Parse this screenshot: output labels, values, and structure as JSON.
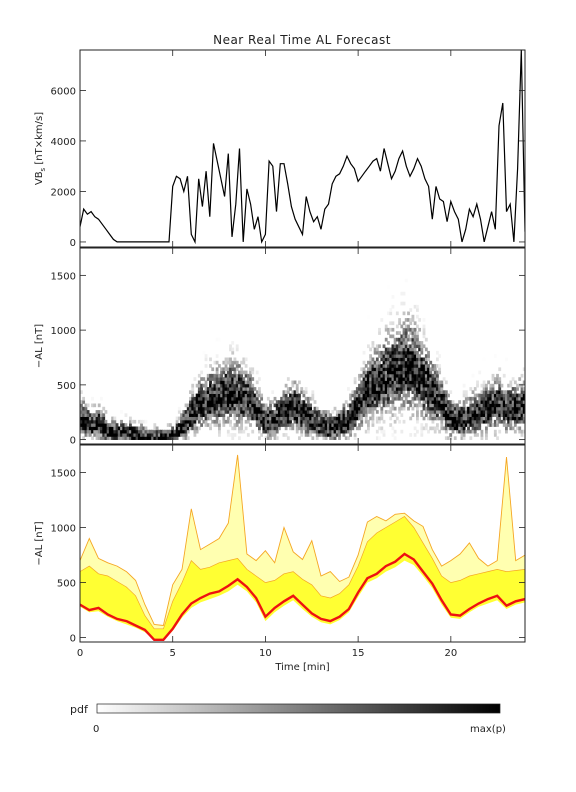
{
  "title": "Near Real Time AL Forecast",
  "colorbar": {
    "label": "pdf",
    "min_label": "0",
    "max_label": "max(p)"
  },
  "chart_data": [
    {
      "type": "line",
      "panel": "vbs",
      "ylabel": "VB_s [nT×km/s]",
      "ylabel_main": "VB",
      "ylabel_sub": "s",
      "ylabel_rest": " [nT×km/s]",
      "xlim": [
        0,
        24
      ],
      "ylim": [
        -200,
        7600
      ],
      "yticks": [
        0,
        2000,
        4000,
        6000
      ],
      "ytick_labels": [
        "0",
        "2000",
        "4000",
        "6000"
      ],
      "color": "#000000",
      "series": [
        {
          "x": [
            0,
            0.2,
            0.4,
            0.6,
            0.8,
            1.0,
            1.2,
            1.4,
            1.6,
            1.8,
            2.0,
            2.2,
            2.4,
            2.6,
            3.0,
            3.5,
            4.0,
            4.5,
            4.8,
            5.0,
            5.2,
            5.4,
            5.6,
            5.8,
            6.0,
            6.2,
            6.4,
            6.6,
            6.8,
            7.0,
            7.2,
            7.4,
            7.6,
            7.8,
            8.0,
            8.2,
            8.4,
            8.6,
            8.8,
            9.0,
            9.2,
            9.4,
            9.6,
            9.8,
            10.0,
            10.2,
            10.4,
            10.6,
            10.8,
            11.0,
            11.2,
            11.4,
            11.6,
            11.8,
            12.0,
            12.2,
            12.4,
            12.6,
            12.8,
            13.0,
            13.2,
            13.4,
            13.6,
            13.8,
            14.0,
            14.2,
            14.4,
            14.6,
            14.8,
            15.0,
            15.2,
            15.4,
            15.6,
            15.8,
            16.0,
            16.2,
            16.4,
            16.6,
            16.8,
            17.0,
            17.2,
            17.4,
            17.6,
            17.8,
            18.0,
            18.2,
            18.4,
            18.6,
            18.8,
            19.0,
            19.2,
            19.4,
            19.6,
            19.8,
            20.0,
            20.2,
            20.4,
            20.6,
            20.8,
            21.0,
            21.2,
            21.4,
            21.6,
            21.8,
            22.0,
            22.2,
            22.4,
            22.6,
            22.8,
            23.0,
            23.2,
            23.4,
            23.6,
            23.8,
            24.0
          ],
          "y": [
            600,
            1300,
            1100,
            1200,
            1000,
            900,
            700,
            500,
            300,
            100,
            0,
            0,
            0,
            0,
            0,
            0,
            0,
            0,
            0,
            2200,
            2600,
            2500,
            2000,
            2600,
            300,
            0,
            2500,
            1400,
            2800,
            1000,
            3900,
            3200,
            2500,
            1800,
            3500,
            200,
            1500,
            3700,
            0,
            2100,
            1500,
            500,
            1000,
            0,
            300,
            3200,
            3000,
            1200,
            3100,
            3100,
            2300,
            1400,
            900,
            600,
            300,
            1800,
            1200,
            800,
            1000,
            500,
            1300,
            1500,
            2300,
            2600,
            2700,
            3000,
            3400,
            3100,
            2900,
            2400,
            2600,
            2800,
            3000,
            3200,
            3300,
            2800,
            3700,
            3100,
            2500,
            2800,
            3300,
            3600,
            3000,
            2600,
            2900,
            3300,
            3000,
            2500,
            2200,
            900,
            2200,
            1700,
            1600,
            800,
            1600,
            1200,
            900,
            0,
            500,
            1300,
            1000,
            1500,
            900,
            0,
            600,
            1200,
            500,
            4600,
            5500,
            1200,
            1500,
            0,
            2900,
            7600,
            400
          ]
        }
      ]
    },
    {
      "type": "heatmap",
      "panel": "pdf",
      "ylabel": "−AL [nT]",
      "xlim": [
        0,
        24
      ],
      "ylim": [
        -40,
        1750
      ],
      "yticks": [
        0,
        500,
        1000,
        1500
      ],
      "ytick_labels": [
        "0",
        "500",
        "1000",
        "1500"
      ],
      "color_scale": [
        "#ffffff",
        "#000000"
      ],
      "series": [
        {
          "name": "most_probable",
          "x": [
            0,
            0.5,
            1.0,
            1.5,
            2.0,
            2.5,
            3.0,
            3.5,
            4.0,
            4.5,
            5.0,
            5.5,
            6.0,
            6.5,
            7.0,
            7.5,
            8.0,
            8.5,
            9.0,
            9.5,
            10.0,
            10.5,
            11.0,
            11.5,
            12.0,
            12.5,
            13.0,
            13.5,
            14.0,
            14.5,
            15.0,
            15.5,
            16.0,
            16.5,
            17.0,
            17.5,
            18.0,
            18.5,
            19.0,
            19.5,
            20.0,
            20.5,
            21.0,
            21.5,
            22.0,
            22.5,
            23.0,
            23.5,
            24.0
          ],
          "y": [
            200,
            130,
            140,
            70,
            50,
            60,
            40,
            20,
            10,
            20,
            30,
            120,
            250,
            330,
            380,
            400,
            450,
            420,
            380,
            270,
            150,
            200,
            270,
            300,
            240,
            180,
            130,
            100,
            140,
            200,
            340,
            470,
            520,
            600,
            640,
            700,
            650,
            540,
            430,
            300,
            180,
            180,
            220,
            260,
            300,
            330,
            290,
            300,
            320
          ]
        }
      ]
    },
    {
      "type": "area",
      "panel": "forecast",
      "ylabel": "−AL [nT]",
      "xlabel": "Time [min]",
      "xlim": [
        0,
        24
      ],
      "ylim": [
        -40,
        1750
      ],
      "xticks": [
        0,
        5,
        10,
        15,
        20
      ],
      "xtick_labels": [
        "0",
        "5",
        "10",
        "15",
        "20"
      ],
      "yticks": [
        0,
        500,
        1000,
        1500
      ],
      "ytick_labels": [
        "0",
        "500",
        "1000",
        "1500"
      ],
      "colors": {
        "band": "#ffff33",
        "outer": "#f5a623",
        "median": "#ee1111"
      },
      "x": [
        0,
        0.5,
        1.0,
        1.5,
        2.0,
        2.5,
        3.0,
        3.5,
        4.0,
        4.5,
        5.0,
        5.5,
        6.0,
        6.5,
        7.0,
        7.5,
        8.0,
        8.5,
        9.0,
        9.5,
        10.0,
        10.5,
        11.0,
        11.5,
        12.0,
        12.5,
        13.0,
        13.5,
        14.0,
        14.5,
        15.0,
        15.5,
        16.0,
        16.5,
        17.0,
        17.5,
        18.0,
        18.5,
        19.0,
        19.5,
        20.0,
        20.5,
        21.0,
        21.5,
        22.0,
        22.5,
        23.0,
        23.5,
        24.0
      ],
      "series": [
        {
          "name": "outer_max",
          "values": [
            700,
            900,
            720,
            680,
            650,
            600,
            520,
            300,
            120,
            110,
            480,
            620,
            1170,
            800,
            850,
            900,
            1040,
            1660,
            760,
            700,
            790,
            680,
            1000,
            780,
            710,
            880,
            560,
            600,
            510,
            550,
            750,
            1050,
            1100,
            1060,
            1120,
            1130,
            1060,
            1010,
            800,
            650,
            700,
            760,
            860,
            720,
            650,
            700,
            1640,
            700,
            750
          ]
        },
        {
          "name": "upper",
          "values": [
            600,
            650,
            580,
            560,
            510,
            460,
            380,
            200,
            80,
            80,
            330,
            500,
            700,
            620,
            640,
            680,
            700,
            720,
            620,
            560,
            500,
            520,
            580,
            600,
            530,
            480,
            380,
            360,
            400,
            480,
            650,
            870,
            950,
            1000,
            1050,
            1100,
            1000,
            860,
            720,
            560,
            500,
            520,
            560,
            580,
            600,
            620,
            600,
            610,
            620
          ]
        },
        {
          "name": "median",
          "values": [
            300,
            250,
            270,
            210,
            170,
            150,
            110,
            70,
            -20,
            -20,
            80,
            210,
            310,
            360,
            400,
            420,
            470,
            530,
            460,
            360,
            190,
            270,
            330,
            380,
            300,
            220,
            170,
            150,
            190,
            260,
            410,
            540,
            580,
            650,
            690,
            760,
            710,
            600,
            490,
            340,
            210,
            200,
            260,
            310,
            350,
            380,
            290,
            330,
            350
          ]
        },
        {
          "name": "lower",
          "values": [
            280,
            230,
            240,
            190,
            150,
            120,
            90,
            50,
            -20,
            -20,
            60,
            180,
            270,
            320,
            350,
            380,
            420,
            480,
            420,
            320,
            150,
            230,
            290,
            340,
            260,
            190,
            140,
            120,
            160,
            230,
            370,
            500,
            540,
            600,
            640,
            700,
            660,
            560,
            450,
            300,
            180,
            170,
            230,
            280,
            310,
            340,
            260,
            300,
            320
          ]
        }
      ]
    }
  ]
}
